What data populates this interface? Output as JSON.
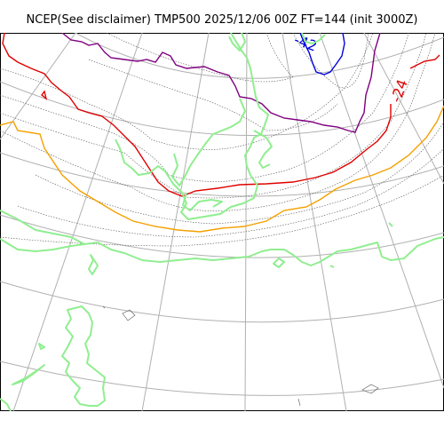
{
  "title": "NCEP(See disclaimer) TMP500 2025/12/06 00Z FT=144 (init 3000Z)",
  "contour_labels": {
    "red": "-24",
    "blue": "-42"
  },
  "colors": {
    "graticule": "#b0b0b0",
    "isotherm_thin": "#555555",
    "isotherm_red": "#e00000",
    "isotherm_orange": "#f5a000",
    "isotherm_purple": "#800080",
    "isotherm_blue": "#0000e0",
    "coastline": "#90ee90"
  }
}
